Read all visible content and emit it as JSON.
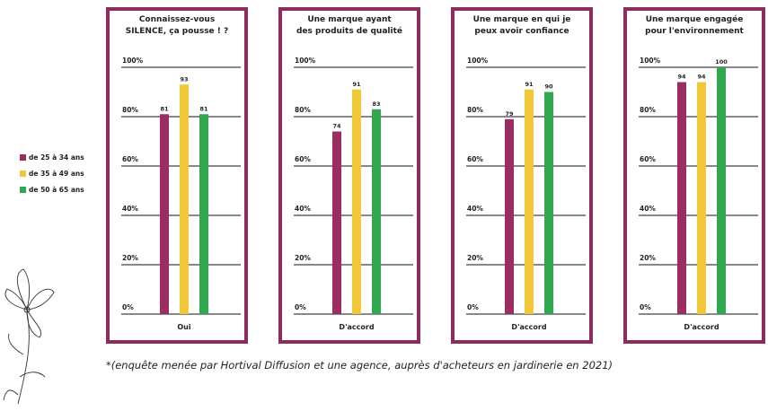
{
  "legend": {
    "items": [
      {
        "name": "de 25 à 34 ans",
        "color": "#9b2d62"
      },
      {
        "name": "de 35 à 49 ans",
        "color": "#f2c83a"
      },
      {
        "name": "de 50 à 65 ans",
        "color": "#2fa84f"
      }
    ]
  },
  "chart_data": [
    {
      "type": "bar",
      "title": "Connaissez-vous\nSILENCE, ça pousse ! ?",
      "categories": [
        "Oui"
      ],
      "series": [
        {
          "values": [
            81
          ]
        },
        {
          "values": [
            93
          ]
        },
        {
          "values": [
            81
          ]
        }
      ],
      "ylim": [
        0,
        100
      ],
      "yticks": [
        {
          "value": 0,
          "label": "0%"
        },
        {
          "value": 20,
          "label": "20%"
        },
        {
          "value": 40,
          "label": "40%"
        },
        {
          "value": 60,
          "label": "60%"
        },
        {
          "value": 80,
          "label": "80%"
        },
        {
          "value": 100,
          "label": "100%"
        }
      ],
      "grid": true
    },
    {
      "type": "bar",
      "title": "Une marque ayant\ndes produits de qualité",
      "categories": [
        "D'accord"
      ],
      "series": [
        {
          "values": [
            74
          ]
        },
        {
          "values": [
            91
          ]
        },
        {
          "values": [
            83
          ]
        }
      ],
      "ylim": [
        0,
        100
      ],
      "yticks": [
        {
          "value": 0,
          "label": "0%"
        },
        {
          "value": 20,
          "label": "20%"
        },
        {
          "value": 40,
          "label": "40%"
        },
        {
          "value": 60,
          "label": "60%"
        },
        {
          "value": 80,
          "label": "80%"
        },
        {
          "value": 100,
          "label": "100%"
        }
      ],
      "grid": true
    },
    {
      "type": "bar",
      "title": "Une marque en qui je\npeux avoir confiance",
      "categories": [
        "D'accord"
      ],
      "series": [
        {
          "values": [
            79
          ]
        },
        {
          "values": [
            91
          ]
        },
        {
          "values": [
            90
          ]
        }
      ],
      "ylim": [
        0,
        100
      ],
      "yticks": [
        {
          "value": 0,
          "label": "0%"
        },
        {
          "value": 20,
          "label": "20%"
        },
        {
          "value": 40,
          "label": "40%"
        },
        {
          "value": 60,
          "label": "60%"
        },
        {
          "value": 80,
          "label": "80%"
        },
        {
          "value": 100,
          "label": "100%"
        }
      ],
      "grid": true
    },
    {
      "type": "bar",
      "title": "Une marque engagée\npour l'environnement",
      "categories": [
        "D'accord"
      ],
      "series": [
        {
          "values": [
            94
          ]
        },
        {
          "values": [
            94
          ]
        },
        {
          "values": [
            100
          ]
        }
      ],
      "ylim": [
        0,
        100
      ],
      "yticks": [
        {
          "value": 0,
          "label": "0%"
        },
        {
          "value": 20,
          "label": "20%"
        },
        {
          "value": 40,
          "label": "40%"
        },
        {
          "value": 60,
          "label": "60%"
        },
        {
          "value": 80,
          "label": "80%"
        },
        {
          "value": 100,
          "label": "100%"
        }
      ],
      "grid": true
    }
  ],
  "footnote": "*(enquête menée par Hortival Diffusion et une agence, auprès d'acheteurs en jardinerie en 2021)"
}
